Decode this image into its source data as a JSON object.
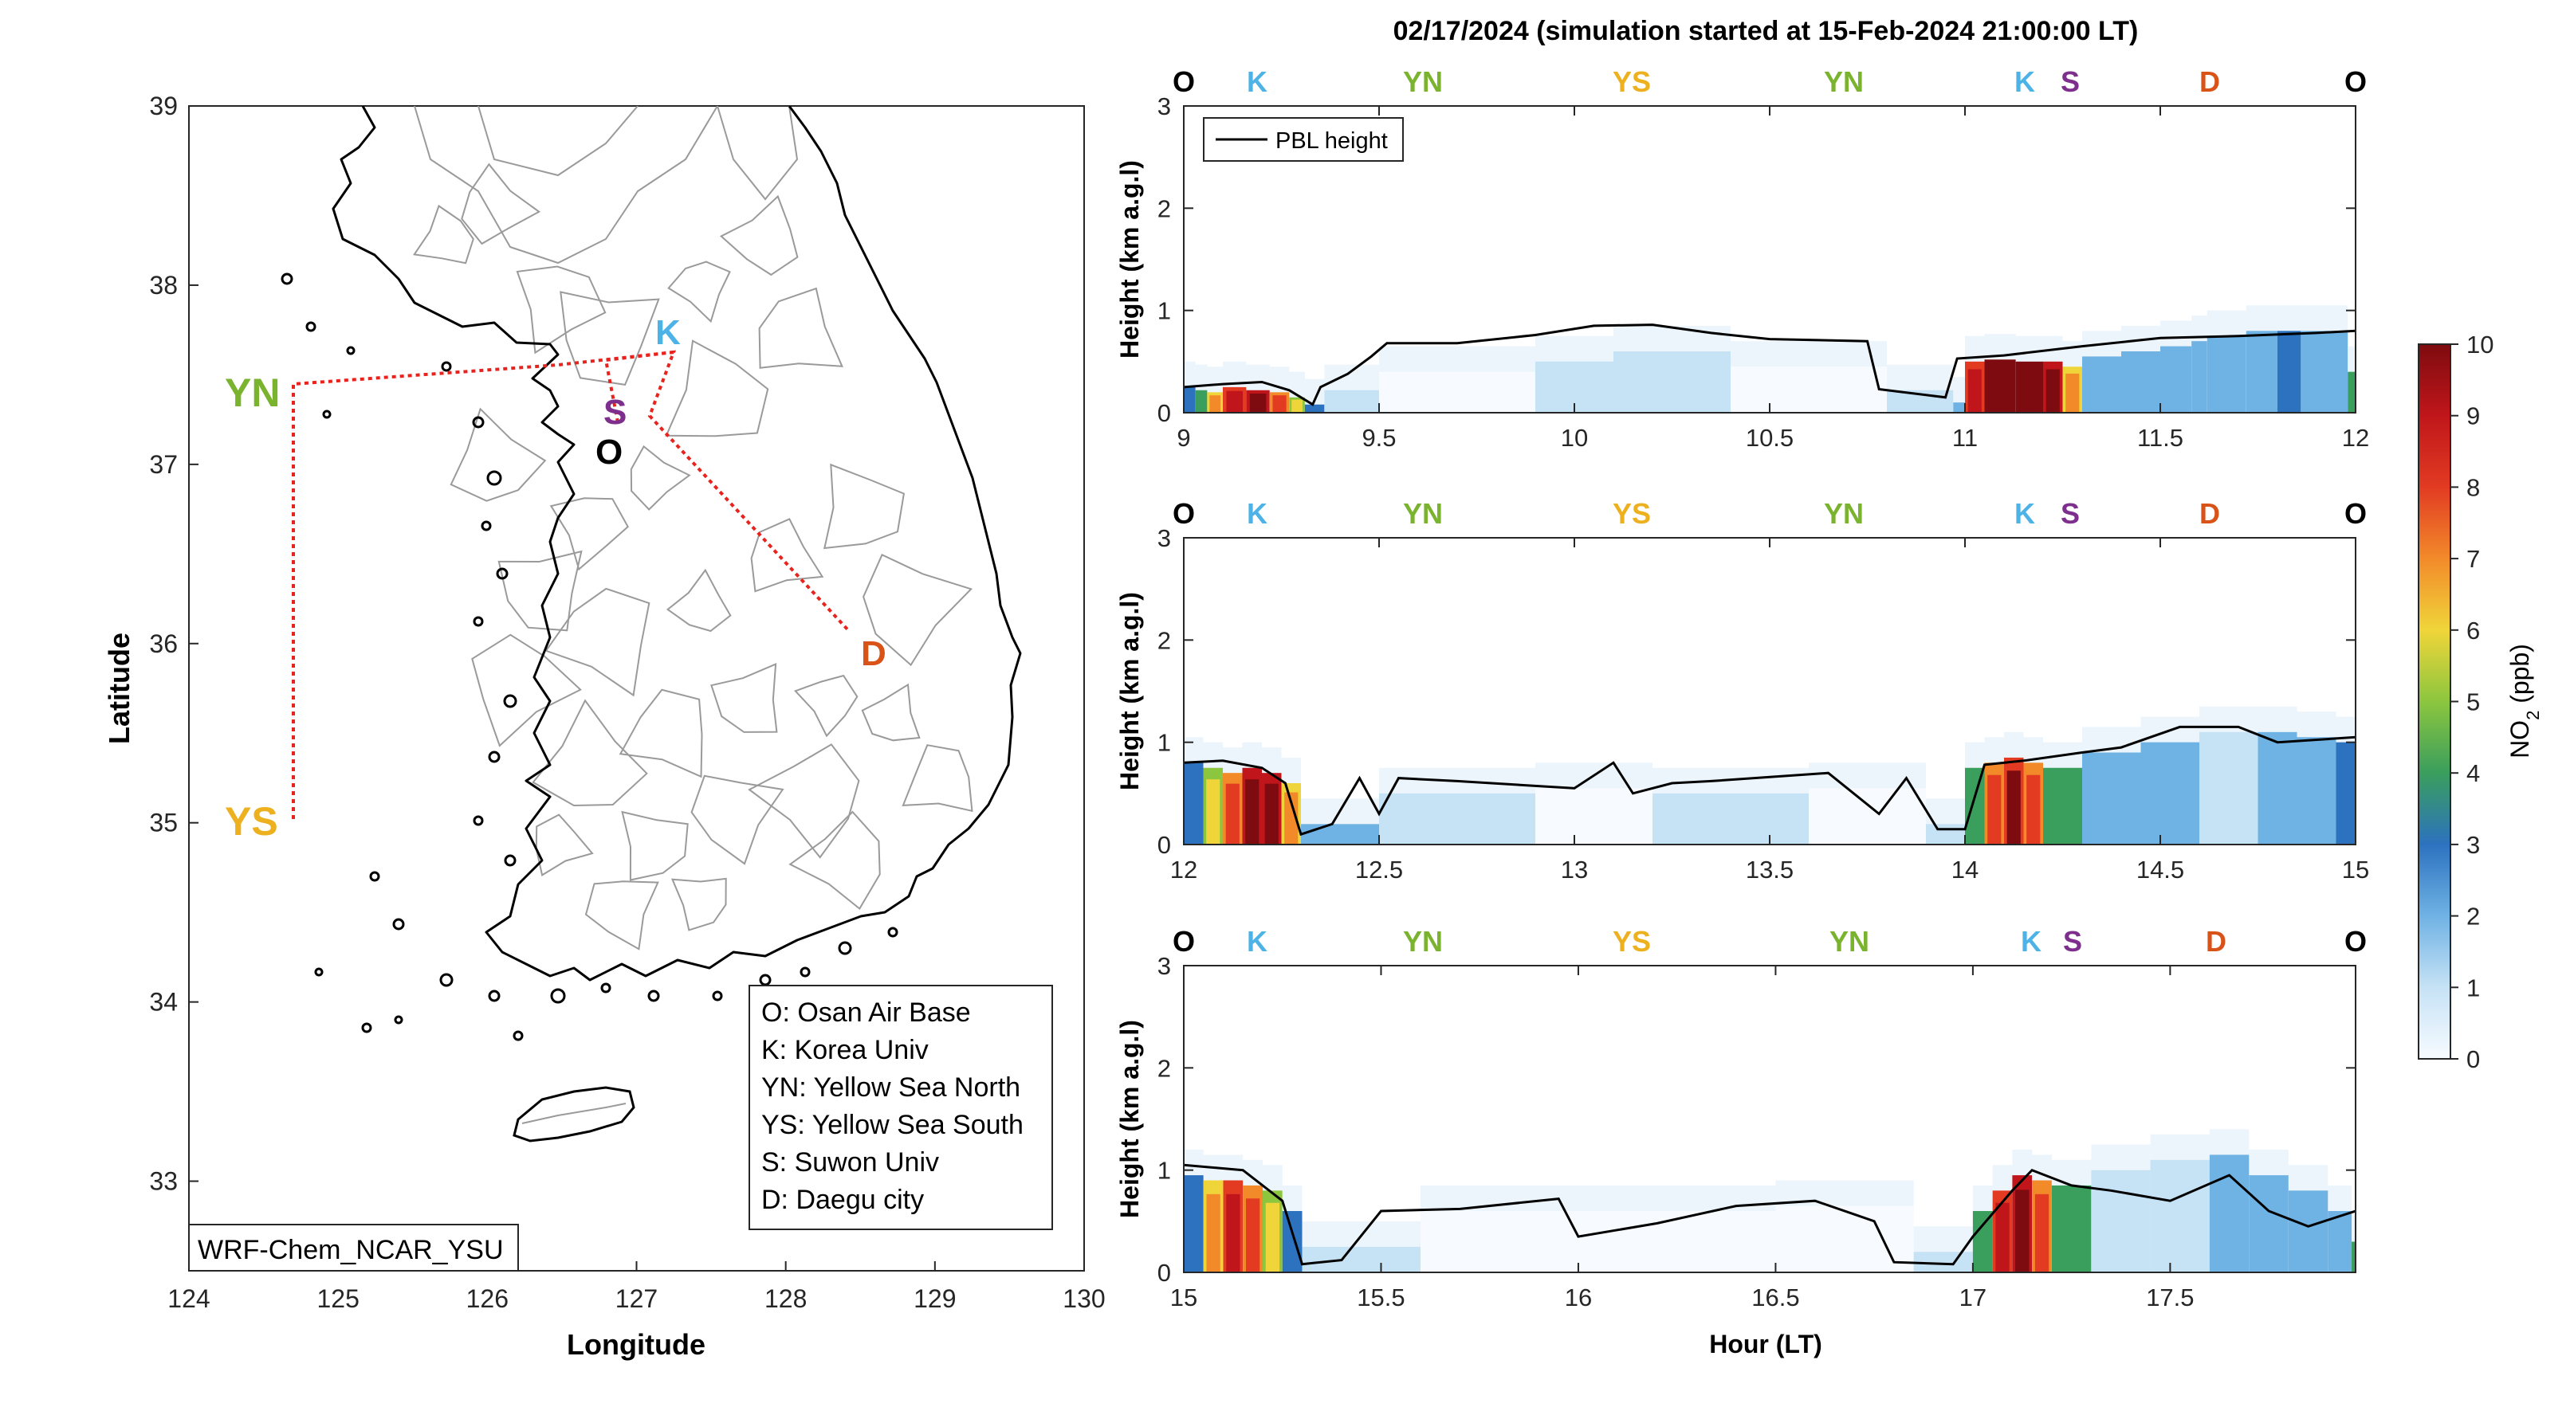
{
  "colors": {
    "O": "#000000",
    "K": "#4db3e6",
    "YN": "#7ab32e",
    "YS": "#edb120",
    "S": "#7e2f8e",
    "D": "#d95319",
    "route": "#e8231e",
    "pbl": "#000000",
    "coast": "#000000",
    "admin": "#9a9a9a"
  },
  "map": {
    "xlabel": "Longitude",
    "ylabel": "Latitude",
    "xlim": [
      124,
      130
    ],
    "ylim": [
      32.5,
      39
    ],
    "xticks": [
      "124",
      "125",
      "126",
      "127",
      "128",
      "129",
      "130"
    ],
    "yticks": [
      "33",
      "34",
      "35",
      "36",
      "37",
      "38",
      "39"
    ],
    "model_label": "WRF-Chem_NCAR_YSU",
    "sites": [
      {
        "id": "O",
        "label": "O"
      },
      {
        "id": "K",
        "label": "K"
      },
      {
        "id": "YN",
        "label": "YN"
      },
      {
        "id": "YS",
        "label": "YS"
      },
      {
        "id": "S",
        "label": "S"
      },
      {
        "id": "D",
        "label": "D"
      }
    ],
    "legend": [
      "O: Osan Air Base",
      "K: Korea Univ",
      "YN: Yellow Sea North",
      "YS: Yellow Sea South",
      "S: Suwon Univ",
      "D: Daegu city"
    ]
  },
  "chart_data": {
    "type": "heatmap",
    "title": "02/17/2024 (simulation started at 15-Feb-2024 21:00:00 LT)",
    "xlabel": "Hour (LT)",
    "ylabel": "Height (km a.g.l)",
    "legend": [
      "PBL height"
    ],
    "colorbar": {
      "label": "NO2 (ppb)",
      "range": [
        0,
        10
      ],
      "ticks": [
        "0",
        "1",
        "2",
        "3",
        "4",
        "5",
        "6",
        "7",
        "8",
        "9",
        "10"
      ]
    },
    "panels": [
      {
        "xlim": [
          9,
          12
        ],
        "ylim": [
          0,
          3
        ],
        "xticks": [
          "9",
          "9.5",
          "10",
          "10.5",
          "11",
          "11.5",
          "12"
        ],
        "yticks": [
          "0",
          "1",
          "2",
          "3"
        ],
        "site_labels": [
          "O",
          "K",
          "YN",
          "YS",
          "YN",
          "K",
          "S",
          "D",
          "O"
        ],
        "pbl_height": [
          [
            9.0,
            0.25
          ],
          [
            9.1,
            0.28
          ],
          [
            9.2,
            0.3
          ],
          [
            9.27,
            0.22
          ],
          [
            9.33,
            0.08
          ],
          [
            9.35,
            0.25
          ],
          [
            9.42,
            0.38
          ],
          [
            9.48,
            0.55
          ],
          [
            9.52,
            0.68
          ],
          [
            9.7,
            0.68
          ],
          [
            9.9,
            0.76
          ],
          [
            10.05,
            0.85
          ],
          [
            10.2,
            0.86
          ],
          [
            10.35,
            0.78
          ],
          [
            10.5,
            0.72
          ],
          [
            10.75,
            0.7
          ],
          [
            10.78,
            0.23
          ],
          [
            10.95,
            0.15
          ],
          [
            10.98,
            0.53
          ],
          [
            11.1,
            0.56
          ],
          [
            11.3,
            0.65
          ],
          [
            11.5,
            0.73
          ],
          [
            11.7,
            0.75
          ],
          [
            11.9,
            0.78
          ],
          [
            12.0,
            0.8
          ]
        ],
        "no2": [
          [
            9.0,
            0.25,
            3
          ],
          [
            9.03,
            0.22,
            4
          ],
          [
            9.06,
            0.2,
            6
          ],
          [
            9.1,
            0.25,
            8
          ],
          [
            9.16,
            0.22,
            9
          ],
          [
            9.22,
            0.2,
            7
          ],
          [
            9.27,
            0.15,
            5
          ],
          [
            9.31,
            0.08,
            3
          ],
          [
            9.36,
            0.22,
            1
          ],
          [
            9.5,
            0.4,
            0.5
          ],
          [
            9.9,
            0.5,
            0.6
          ],
          [
            10.1,
            0.6,
            0.7
          ],
          [
            10.4,
            0.45,
            0.5
          ],
          [
            10.8,
            0.22,
            1
          ],
          [
            10.97,
            0.1,
            2.5
          ],
          [
            11.0,
            0.5,
            8
          ],
          [
            11.05,
            0.52,
            10
          ],
          [
            11.13,
            0.5,
            10
          ],
          [
            11.2,
            0.5,
            9
          ],
          [
            11.25,
            0.45,
            6
          ],
          [
            11.3,
            0.55,
            2.5
          ],
          [
            11.4,
            0.6,
            1.8
          ],
          [
            11.5,
            0.65,
            2
          ],
          [
            11.58,
            0.7,
            2.5
          ],
          [
            11.62,
            0.75,
            2
          ],
          [
            11.72,
            0.8,
            2.2
          ],
          [
            11.8,
            0.8,
            2.8
          ],
          [
            11.86,
            0.8,
            2
          ],
          [
            11.95,
            0.8,
            2.5
          ],
          [
            11.98,
            0.4,
            4
          ]
        ]
      },
      {
        "xlim": [
          12,
          15
        ],
        "ylim": [
          0,
          3
        ],
        "xticks": [
          "12",
          "12.5",
          "13",
          "13.5",
          "14",
          "14.5",
          "15"
        ],
        "yticks": [
          "0",
          "1",
          "2",
          "3"
        ],
        "site_labels": [
          "O",
          "K",
          "YN",
          "YS",
          "YN",
          "K",
          "S",
          "D",
          "O"
        ],
        "pbl_height": [
          [
            12.0,
            0.8
          ],
          [
            12.1,
            0.82
          ],
          [
            12.2,
            0.75
          ],
          [
            12.26,
            0.6
          ],
          [
            12.3,
            0.1
          ],
          [
            12.38,
            0.2
          ],
          [
            12.45,
            0.65
          ],
          [
            12.5,
            0.3
          ],
          [
            12.55,
            0.65
          ],
          [
            12.7,
            0.62
          ],
          [
            13.0,
            0.55
          ],
          [
            13.1,
            0.8
          ],
          [
            13.15,
            0.5
          ],
          [
            13.25,
            0.6
          ],
          [
            13.35,
            0.62
          ],
          [
            13.65,
            0.7
          ],
          [
            13.78,
            0.3
          ],
          [
            13.85,
            0.65
          ],
          [
            13.93,
            0.15
          ],
          [
            14.0,
            0.15
          ],
          [
            14.05,
            0.78
          ],
          [
            14.15,
            0.82
          ],
          [
            14.3,
            0.9
          ],
          [
            14.4,
            0.95
          ],
          [
            14.55,
            1.15
          ],
          [
            14.7,
            1.15
          ],
          [
            14.8,
            1.0
          ],
          [
            15.0,
            1.05
          ]
        ],
        "no2": [
          [
            12.0,
            0.8,
            3
          ],
          [
            12.05,
            0.75,
            5
          ],
          [
            12.1,
            0.7,
            7
          ],
          [
            12.15,
            0.75,
            9
          ],
          [
            12.2,
            0.7,
            9.5
          ],
          [
            12.25,
            0.6,
            6
          ],
          [
            12.3,
            0.2,
            2
          ],
          [
            12.5,
            0.5,
            0.6
          ],
          [
            12.9,
            0.55,
            0.5
          ],
          [
            13.2,
            0.5,
            0.6
          ],
          [
            13.6,
            0.55,
            0.5
          ],
          [
            13.9,
            0.2,
            1.5
          ],
          [
            14.0,
            0.75,
            4
          ],
          [
            14.05,
            0.8,
            7
          ],
          [
            14.1,
            0.85,
            8.5
          ],
          [
            14.15,
            0.8,
            7
          ],
          [
            14.2,
            0.75,
            4
          ],
          [
            14.3,
            0.9,
            2.5
          ],
          [
            14.45,
            1.0,
            2
          ],
          [
            14.6,
            1.1,
            1.5
          ],
          [
            14.75,
            1.1,
            2
          ],
          [
            14.85,
            1.05,
            2.5
          ],
          [
            14.95,
            1.0,
            3
          ]
        ]
      },
      {
        "xlim": [
          15,
          17.97
        ],
        "ylim": [
          0,
          3
        ],
        "xticks": [
          "15",
          "15.5",
          "16",
          "16.5",
          "17",
          "17.5"
        ],
        "yticks": [
          "0",
          "1",
          "2",
          "3"
        ],
        "site_labels": [
          "O",
          "K",
          "YN",
          "YS",
          "YN",
          "K",
          "S",
          "D",
          "O"
        ],
        "pbl_height": [
          [
            15.0,
            1.05
          ],
          [
            15.15,
            1.0
          ],
          [
            15.25,
            0.7
          ],
          [
            15.3,
            0.08
          ],
          [
            15.4,
            0.12
          ],
          [
            15.5,
            0.6
          ],
          [
            15.7,
            0.62
          ],
          [
            15.95,
            0.72
          ],
          [
            16.0,
            0.35
          ],
          [
            16.2,
            0.48
          ],
          [
            16.4,
            0.65
          ],
          [
            16.6,
            0.7
          ],
          [
            16.75,
            0.5
          ],
          [
            16.8,
            0.1
          ],
          [
            16.95,
            0.08
          ],
          [
            17.0,
            0.35
          ],
          [
            17.1,
            0.8
          ],
          [
            17.15,
            1.0
          ],
          [
            17.25,
            0.85
          ],
          [
            17.35,
            0.8
          ],
          [
            17.5,
            0.7
          ],
          [
            17.65,
            0.95
          ],
          [
            17.75,
            0.6
          ],
          [
            17.85,
            0.45
          ],
          [
            17.97,
            0.6
          ]
        ],
        "no2": [
          [
            15.0,
            0.95,
            3
          ],
          [
            15.05,
            0.9,
            6
          ],
          [
            15.1,
            0.9,
            8
          ],
          [
            15.15,
            0.85,
            7
          ],
          [
            15.2,
            0.8,
            5
          ],
          [
            15.25,
            0.6,
            3
          ],
          [
            15.3,
            0.25,
            1
          ],
          [
            15.6,
            0.6,
            0.5
          ],
          [
            16.0,
            0.6,
            0.4
          ],
          [
            16.5,
            0.65,
            0.4
          ],
          [
            16.85,
            0.2,
            1
          ],
          [
            17.0,
            0.6,
            4
          ],
          [
            17.05,
            0.8,
            8
          ],
          [
            17.1,
            0.95,
            9
          ],
          [
            17.15,
            0.9,
            7
          ],
          [
            17.2,
            0.85,
            4
          ],
          [
            17.3,
            1.0,
            1.5
          ],
          [
            17.45,
            1.1,
            1.5
          ],
          [
            17.6,
            1.15,
            2
          ],
          [
            17.7,
            0.95,
            2.5
          ],
          [
            17.8,
            0.8,
            2.5
          ],
          [
            17.9,
            0.6,
            2
          ],
          [
            17.96,
            0.3,
            4
          ]
        ]
      }
    ]
  }
}
